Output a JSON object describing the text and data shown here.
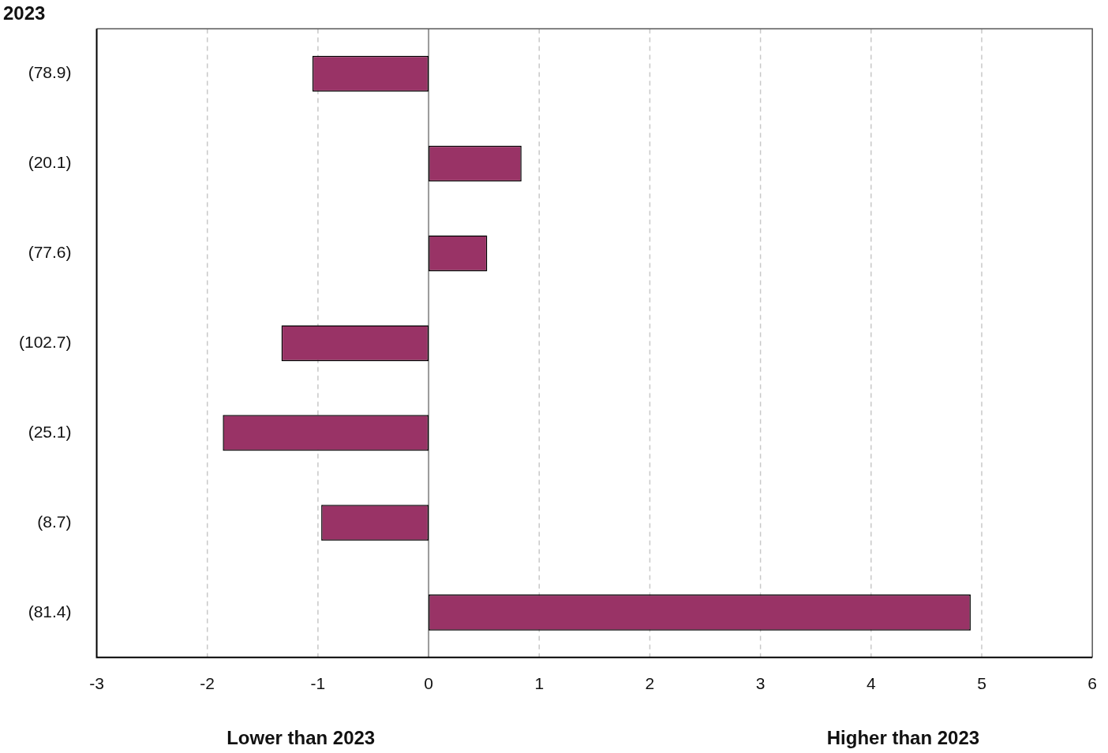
{
  "chart_data": {
    "type": "bar",
    "orientation": "horizontal",
    "ylabel": "2023",
    "categories": [
      "(78.9)",
      "(20.1)",
      "(77.6)",
      "(102.7)",
      "(25.1)",
      "(8.7)",
      "(81.4)"
    ],
    "values": [
      -1.05,
      0.84,
      0.53,
      -1.33,
      -1.86,
      -0.97,
      4.9
    ],
    "color": "#993366",
    "xlim": [
      -3,
      6
    ],
    "xticks": [
      -3,
      -2,
      -1,
      0,
      1,
      2,
      3,
      4,
      5,
      6
    ],
    "grid": "x",
    "annotations": [
      "Lower than 2023",
      "Higher than 2023"
    ]
  }
}
